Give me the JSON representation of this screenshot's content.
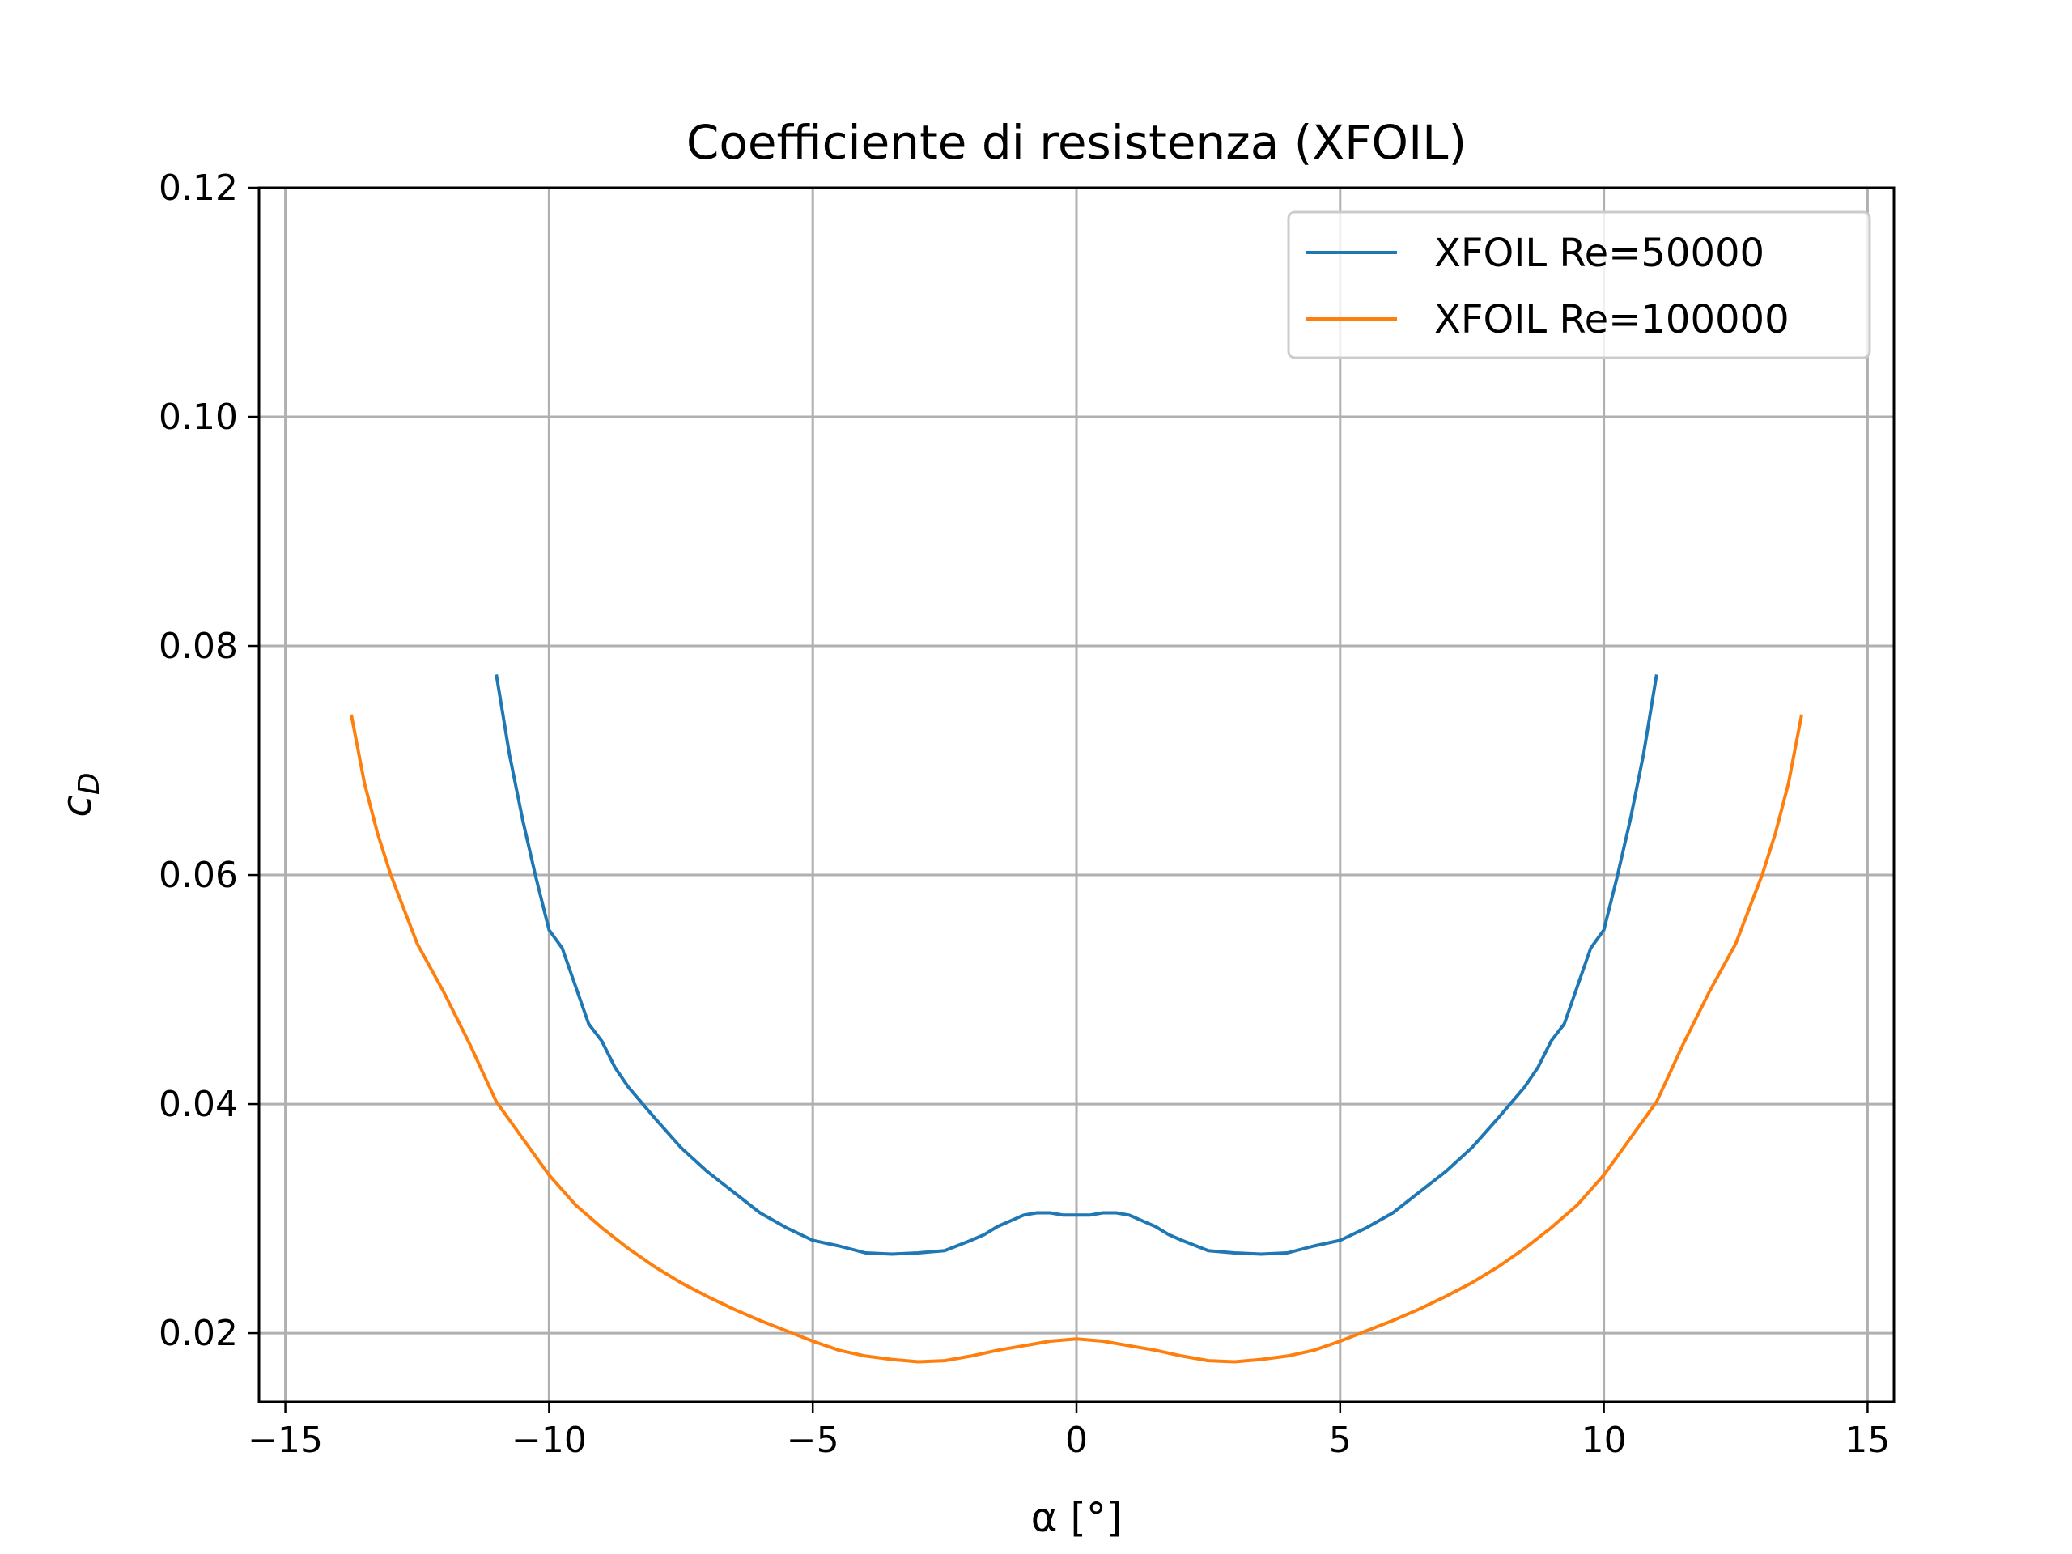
{
  "chart_data": {
    "type": "line",
    "title": "Coefficiente di resistenza (XFOIL)",
    "xlabel": "α [°]",
    "ylabel": "c",
    "ylabel_subscript": "D",
    "xlim": [
      -15.5,
      15.5
    ],
    "ylim": [
      0.014,
      0.12
    ],
    "xticks": [
      -15,
      -10,
      -5,
      0,
      5,
      10,
      15
    ],
    "xtick_labels": [
      "−15",
      "−10",
      "−5",
      "0",
      "5",
      "10",
      "15"
    ],
    "yticks": [
      0.02,
      0.04,
      0.06,
      0.08,
      0.1,
      0.12
    ],
    "ytick_labels": [
      "0.02",
      "0.04",
      "0.06",
      "0.08",
      "0.10",
      "0.12"
    ],
    "grid": true,
    "legend_position": "top-right",
    "series": [
      {
        "name": "XFOIL Re=50000",
        "color": "#1f77b4",
        "x": [
          -11,
          -10.75,
          -10.5,
          -10.25,
          -10,
          -9.75,
          -9.5,
          -9.25,
          -9,
          -8.75,
          -8.5,
          -8,
          -7.5,
          -7,
          -6.5,
          -6,
          -5.5,
          -5,
          -4.5,
          -4,
          -3.5,
          -3,
          -2.5,
          -2,
          -1.75,
          -1.5,
          -1.25,
          -1,
          -0.75,
          -0.5,
          -0.25,
          0,
          0.25,
          0.5,
          0.75,
          1,
          1.25,
          1.5,
          1.75,
          2,
          2.5,
          3,
          3.5,
          4,
          4.5,
          5,
          5.5,
          6,
          6.5,
          7,
          7.5,
          8,
          8.5,
          8.75,
          9,
          9.25,
          9.5,
          9.75,
          10,
          10.25,
          10.5,
          10.75,
          11
        ],
        "y": [
          0.0775,
          0.0705,
          0.0648,
          0.0598,
          0.0552,
          0.0536,
          0.0503,
          0.047,
          0.0455,
          0.0432,
          0.0415,
          0.0388,
          0.0362,
          0.0341,
          0.0323,
          0.0305,
          0.0292,
          0.0281,
          0.0276,
          0.027,
          0.0269,
          0.027,
          0.0272,
          0.0281,
          0.0286,
          0.0293,
          0.0298,
          0.0303,
          0.0305,
          0.0305,
          0.0303,
          0.0303,
          0.0303,
          0.0305,
          0.0305,
          0.0303,
          0.0298,
          0.0293,
          0.0286,
          0.0281,
          0.0272,
          0.027,
          0.0269,
          0.027,
          0.0276,
          0.0281,
          0.0292,
          0.0305,
          0.0323,
          0.0341,
          0.0362,
          0.0388,
          0.0415,
          0.0432,
          0.0455,
          0.047,
          0.0503,
          0.0536,
          0.0552,
          0.0598,
          0.0648,
          0.0705,
          0.0775
        ]
      },
      {
        "name": "XFOIL Re=100000",
        "color": "#ff7f0e",
        "x": [
          -13.75,
          -13.5,
          -13.25,
          -13,
          -12.5,
          -12,
          -11.5,
          -11,
          -10.5,
          -10,
          -9.5,
          -9,
          -8.5,
          -8,
          -7.5,
          -7,
          -6.5,
          -6,
          -5.5,
          -5,
          -4.5,
          -4,
          -3.5,
          -3,
          -2.5,
          -2,
          -1.5,
          -1,
          -0.5,
          0,
          0.5,
          1,
          1.5,
          2,
          2.5,
          3,
          3.5,
          4,
          4.5,
          5,
          5.5,
          6,
          6.5,
          7,
          7.5,
          8,
          8.5,
          9,
          9.5,
          10,
          10.5,
          11,
          11.5,
          12,
          12.5,
          13,
          13.25,
          13.5,
          13.75
        ],
        "y": [
          0.074,
          0.068,
          0.0636,
          0.06,
          0.054,
          0.0498,
          0.0452,
          0.0402,
          0.037,
          0.0338,
          0.0312,
          0.0292,
          0.0274,
          0.0258,
          0.0244,
          0.0232,
          0.0221,
          0.0211,
          0.0202,
          0.0193,
          0.0185,
          0.018,
          0.0177,
          0.0175,
          0.0176,
          0.018,
          0.0185,
          0.0189,
          0.0193,
          0.0195,
          0.0193,
          0.0189,
          0.0185,
          0.018,
          0.0176,
          0.0175,
          0.0177,
          0.018,
          0.0185,
          0.0193,
          0.0202,
          0.0211,
          0.0221,
          0.0232,
          0.0244,
          0.0258,
          0.0274,
          0.0292,
          0.0312,
          0.0338,
          0.037,
          0.0402,
          0.0452,
          0.0498,
          0.054,
          0.06,
          0.0636,
          0.068,
          0.074
        ]
      }
    ]
  }
}
